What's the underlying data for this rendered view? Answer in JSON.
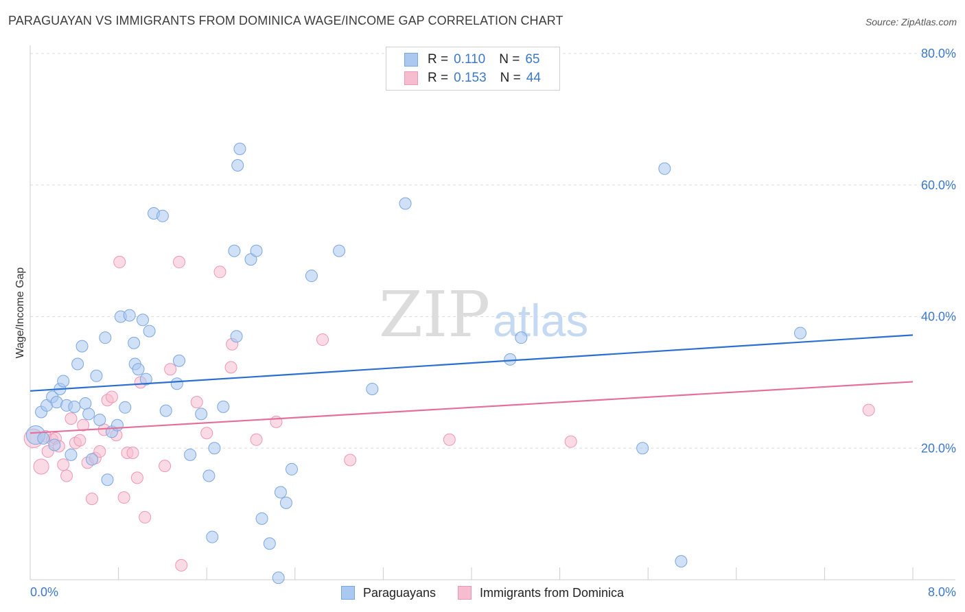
{
  "title": "PARAGUAYAN VS IMMIGRANTS FROM DOMINICA WAGE/INCOME GAP CORRELATION CHART",
  "source": "Source: ZipAtlas.com",
  "watermark": {
    "zip": "ZIP",
    "atlas": "atlas"
  },
  "colors": {
    "blue_fill": "#aac8f0",
    "blue_stroke": "#7aa6e0",
    "blue_line": "#2a6fd0",
    "pink_fill": "#f6bdd0",
    "pink_stroke": "#ee96b3",
    "pink_line": "#e4709a",
    "grid": "#dddddd",
    "tick_text": "#3b78c9"
  },
  "legend_top": [
    {
      "r_label": "R =",
      "r_value": "0.110",
      "n_label": "N =",
      "n_value": "65",
      "series": "blue"
    },
    {
      "r_label": "R =",
      "r_value": "0.153",
      "n_label": "N =",
      "n_value": "44",
      "series": "pink"
    }
  ],
  "legend_bottom": [
    {
      "label": "Paraguayans",
      "series": "blue"
    },
    {
      "label": "Immigrants from Dominica",
      "series": "pink"
    }
  ],
  "chart_data": {
    "type": "scatter",
    "title": "PARAGUAYAN VS IMMIGRANTS FROM DOMINICA WAGE/INCOME GAP CORRELATION CHART",
    "xlabel": "",
    "ylabel": "Wage/Income Gap",
    "xlim": [
      0,
      8
    ],
    "ylim": [
      0,
      80
    ],
    "x_tick_labels": [
      "0.0%",
      "8.0%"
    ],
    "y_ticks": [
      20,
      40,
      60,
      80
    ],
    "y_tick_labels": [
      "20.0%",
      "40.0%",
      "60.0%",
      "80.0%"
    ],
    "grid": true,
    "legend_position": "top-center",
    "series": [
      {
        "name": "Paraguayans",
        "color": "blue",
        "trend": {
          "x": [
            0,
            8
          ],
          "y": [
            28.7,
            37.2
          ]
        },
        "points": [
          [
            0.05,
            22.0,
            1.6
          ],
          [
            0.1,
            25.5,
            1
          ],
          [
            0.15,
            26.5,
            1
          ],
          [
            0.2,
            27.8,
            1
          ],
          [
            0.24,
            27.0,
            1
          ],
          [
            0.27,
            29.0,
            1
          ],
          [
            0.3,
            30.2,
            1
          ],
          [
            0.33,
            26.5,
            1
          ],
          [
            0.37,
            19.0,
            1
          ],
          [
            0.4,
            26.3,
            1
          ],
          [
            0.43,
            32.8,
            1
          ],
          [
            0.47,
            35.5,
            1
          ],
          [
            0.5,
            26.8,
            1
          ],
          [
            0.53,
            25.2,
            1
          ],
          [
            0.56,
            18.3,
            1
          ],
          [
            0.6,
            31.0,
            1
          ],
          [
            0.63,
            24.3,
            1
          ],
          [
            0.68,
            36.8,
            1
          ],
          [
            0.7,
            15.2,
            1
          ],
          [
            0.74,
            22.5,
            1
          ],
          [
            0.79,
            23.5,
            1
          ],
          [
            0.82,
            40.0,
            1
          ],
          [
            0.86,
            26.2,
            1
          ],
          [
            0.9,
            40.2,
            1
          ],
          [
            0.94,
            36.0,
            1
          ],
          [
            0.95,
            32.8,
            1
          ],
          [
            0.98,
            32.0,
            1
          ],
          [
            1.02,
            39.5,
            1
          ],
          [
            1.05,
            30.5,
            1
          ],
          [
            1.08,
            37.8,
            1
          ],
          [
            1.12,
            55.7,
            1
          ],
          [
            1.2,
            55.3,
            1
          ],
          [
            1.23,
            25.7,
            1
          ],
          [
            1.33,
            29.8,
            1
          ],
          [
            1.35,
            33.3,
            1
          ],
          [
            1.45,
            19.0,
            1
          ],
          [
            1.55,
            25.2,
            1
          ],
          [
            1.62,
            15.8,
            1
          ],
          [
            1.67,
            20.0,
            1
          ],
          [
            1.75,
            26.3,
            1
          ],
          [
            1.85,
            50.0,
            1
          ],
          [
            1.87,
            37.0,
            1
          ],
          [
            1.88,
            63.0,
            1
          ],
          [
            1.9,
            65.5,
            1
          ],
          [
            1.65,
            6.5,
            1
          ],
          [
            2.0,
            48.7,
            1
          ],
          [
            2.05,
            50.0,
            1
          ],
          [
            2.1,
            9.3,
            1
          ],
          [
            2.17,
            5.5,
            1
          ],
          [
            2.25,
            0.3,
            1
          ],
          [
            2.27,
            13.3,
            1
          ],
          [
            2.32,
            11.7,
            1
          ],
          [
            2.37,
            16.8,
            1
          ],
          [
            2.55,
            46.2,
            1
          ],
          [
            2.8,
            50.0,
            1
          ],
          [
            3.1,
            29.0,
            1
          ],
          [
            3.4,
            57.2,
            1
          ],
          [
            4.35,
            33.5,
            1
          ],
          [
            4.45,
            36.8,
            1
          ],
          [
            5.55,
            20.0,
            1
          ],
          [
            5.75,
            62.5,
            1
          ],
          [
            5.9,
            2.8,
            1
          ],
          [
            6.98,
            37.5,
            1
          ],
          [
            0.12,
            21.5,
            1
          ],
          [
            0.22,
            20.5,
            1
          ]
        ]
      },
      {
        "name": "Immigrants from Dominica",
        "color": "pink",
        "trend": {
          "x": [
            0,
            8
          ],
          "y": [
            22.3,
            30.1
          ]
        },
        "points": [
          [
            0.03,
            21.5,
            1.6
          ],
          [
            0.1,
            17.2,
            1.3
          ],
          [
            0.14,
            21.8,
            1
          ],
          [
            0.16,
            19.5,
            1
          ],
          [
            0.2,
            21.3,
            1
          ],
          [
            0.23,
            21.5,
            1
          ],
          [
            0.26,
            20.3,
            1
          ],
          [
            0.3,
            17.5,
            1
          ],
          [
            0.33,
            15.8,
            1
          ],
          [
            0.37,
            24.5,
            1
          ],
          [
            0.41,
            20.8,
            1
          ],
          [
            0.45,
            21.2,
            1
          ],
          [
            0.48,
            23.5,
            1
          ],
          [
            0.52,
            17.8,
            1
          ],
          [
            0.56,
            12.3,
            1
          ],
          [
            0.59,
            18.5,
            1
          ],
          [
            0.63,
            19.5,
            1
          ],
          [
            0.67,
            22.8,
            1
          ],
          [
            0.7,
            27.3,
            1
          ],
          [
            0.74,
            27.8,
            1
          ],
          [
            0.78,
            22.0,
            1
          ],
          [
            0.81,
            48.3,
            1
          ],
          [
            0.85,
            12.5,
            1
          ],
          [
            0.88,
            19.3,
            1
          ],
          [
            0.93,
            19.3,
            1
          ],
          [
            0.97,
            15.5,
            1
          ],
          [
            1.0,
            30.0,
            1
          ],
          [
            1.04,
            9.5,
            1
          ],
          [
            1.22,
            17.3,
            1
          ],
          [
            1.27,
            32.0,
            1
          ],
          [
            1.35,
            48.3,
            1
          ],
          [
            1.37,
            2.2,
            1
          ],
          [
            1.51,
            27.0,
            1
          ],
          [
            1.6,
            22.3,
            1
          ],
          [
            1.72,
            46.8,
            1
          ],
          [
            1.82,
            32.3,
            1
          ],
          [
            1.83,
            35.8,
            1
          ],
          [
            2.05,
            21.3,
            1
          ],
          [
            2.23,
            24.0,
            1
          ],
          [
            2.65,
            36.5,
            1
          ],
          [
            2.9,
            18.2,
            1
          ],
          [
            3.8,
            21.3,
            1
          ],
          [
            4.9,
            21.0,
            1
          ],
          [
            7.6,
            25.8,
            1
          ]
        ]
      }
    ]
  }
}
